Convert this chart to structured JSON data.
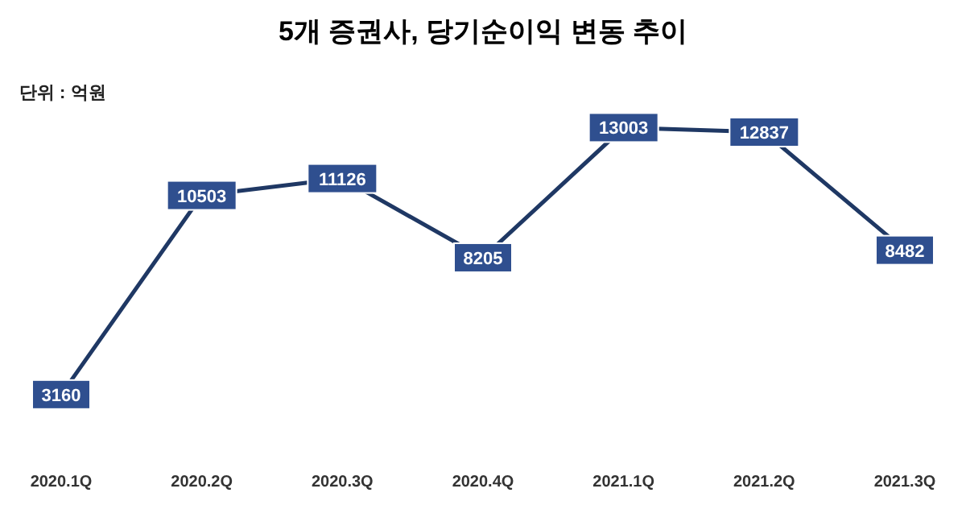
{
  "chart_data": {
    "type": "line",
    "title": "5개 증권사, 당기순이익 변동 추이",
    "annotations": [
      "단위 : 억원"
    ],
    "categories": [
      "2020.1Q",
      "2020.2Q",
      "2020.3Q",
      "2020.4Q",
      "2021.1Q",
      "2021.2Q",
      "2021.3Q"
    ],
    "series": [
      {
        "color": "#1f3864",
        "values": [
          3160,
          10503,
          11126,
          8205,
          13003,
          12837,
          8482
        ]
      }
    ],
    "data_labels": true,
    "tick_labels": "x",
    "marker": "square"
  }
}
